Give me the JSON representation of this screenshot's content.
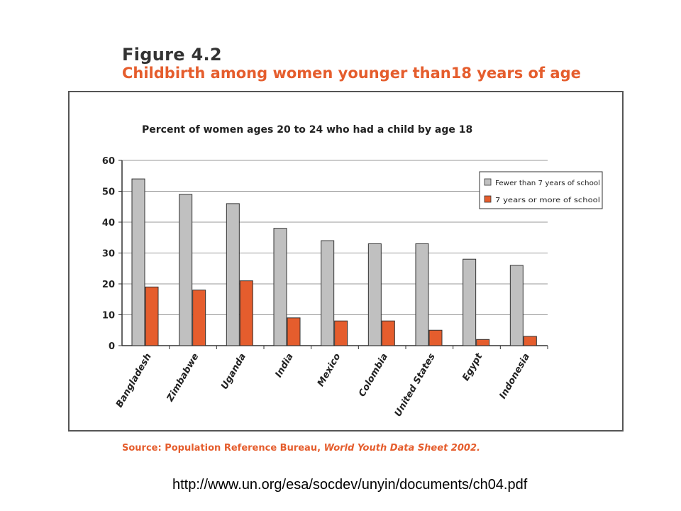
{
  "figure": {
    "number": "Figure 4.2",
    "title": "Childbirth among women younger than18 years of age"
  },
  "chart_data": {
    "type": "bar",
    "title": "Percent of women ages 20 to 24 who had a child by age 18",
    "xlabel": "",
    "ylabel": "",
    "ylim": [
      0,
      60
    ],
    "yticks": [
      0,
      10,
      20,
      30,
      40,
      50,
      60
    ],
    "grid": true,
    "legend_position": "top-right",
    "categories": [
      "Bangladesh",
      "Zimbabwe",
      "Uganda",
      "India",
      "Mexico",
      "Colombia",
      "United States",
      "Egypt",
      "Indonesia"
    ],
    "series": [
      {
        "name": "Fewer than 7 years of school",
        "color": "#c0c0c0",
        "values": [
          54,
          49,
          46,
          38,
          34,
          33,
          33,
          28,
          26
        ]
      },
      {
        "name": "7 years or more of school",
        "color": "#e55d2d",
        "values": [
          19,
          18,
          21,
          9,
          8,
          8,
          5,
          2,
          3
        ]
      }
    ]
  },
  "source": {
    "prefix": "Source: Population Reference Bureau, ",
    "publication": "World Youth Data Sheet 2002."
  },
  "url": "http://www.un.org/esa/socdev/unyin/documents/ch04.pdf"
}
